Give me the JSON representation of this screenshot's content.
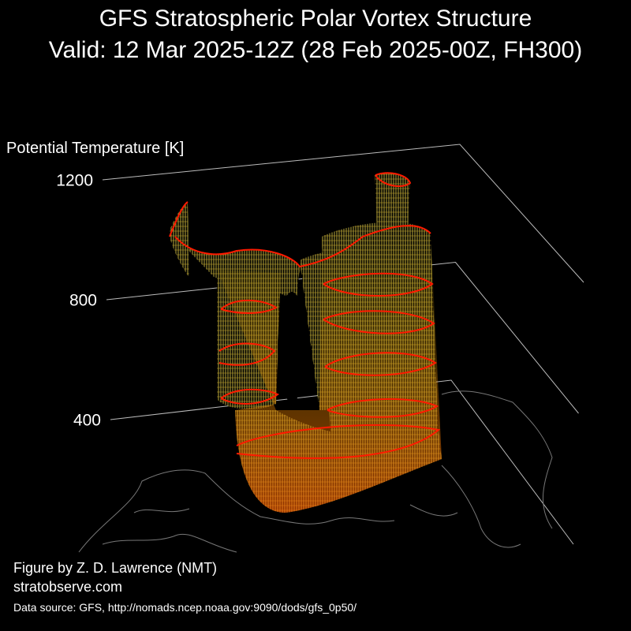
{
  "chart_data": {
    "type": "3d-contour",
    "title": "GFS Stratospheric Polar Vortex Structure",
    "subtitle": "Valid: 12 Mar 2025-12Z  (28 Feb 2025-00Z, FH300)",
    "zlabel": "Potential Temperature [K]",
    "zlim": [
      400,
      1200
    ],
    "zticks": [
      400,
      800,
      1200
    ],
    "grid": true,
    "credit": "Figure by Z. D. Lawrence (NMT)",
    "website": "stratobserve.com",
    "source": "Data source: GFS, http://nomads.ncep.noaa.gov:9090/dods/gfs_0p50/"
  }
}
